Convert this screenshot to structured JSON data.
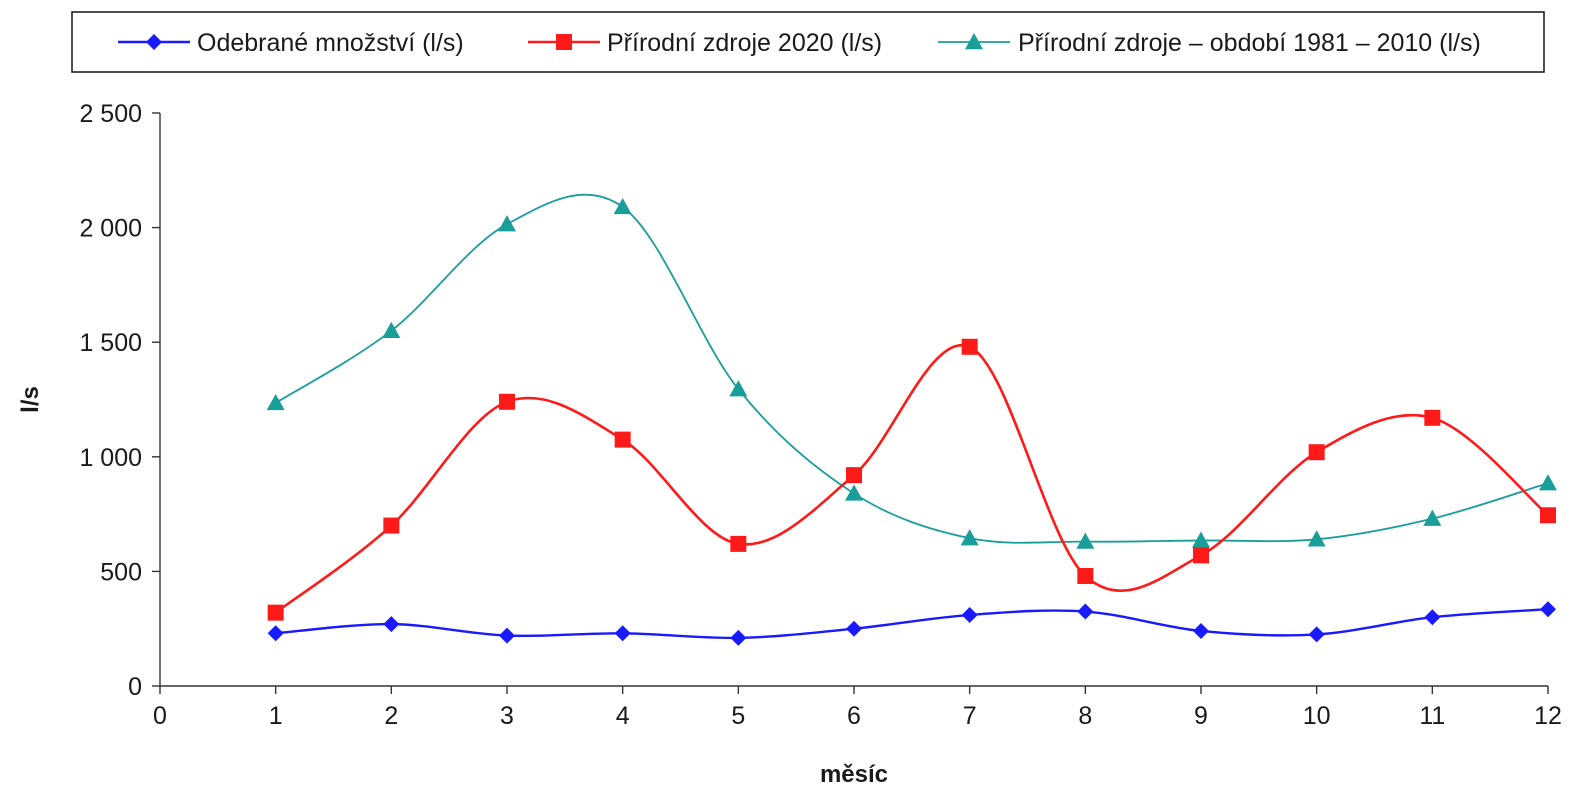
{
  "chart_data": {
    "type": "line",
    "xlabel": "měsíc",
    "ylabel": "l/s",
    "xlim": [
      0,
      12
    ],
    "ylim": [
      0,
      2500
    ],
    "x_ticks": [
      "0",
      "1",
      "2",
      "3",
      "4",
      "5",
      "6",
      "7",
      "8",
      "9",
      "10",
      "11",
      "12"
    ],
    "y_ticks": [
      "0",
      "500",
      "1 000",
      "1 500",
      "2 000",
      "2 500"
    ],
    "x": [
      1,
      2,
      3,
      4,
      5,
      6,
      7,
      8,
      9,
      10,
      11,
      12
    ],
    "grid": false,
    "legend_position": "top",
    "series": [
      {
        "name": "Odebrané množství (l/s)",
        "color": "#1a1aff",
        "marker": "diamond",
        "values": [
          230,
          270,
          220,
          230,
          210,
          250,
          310,
          325,
          240,
          225,
          300,
          335
        ]
      },
      {
        "name": "Přírodní zdroje 2020 (l/s)",
        "color": "#ff1a1a",
        "marker": "square",
        "values": [
          320,
          700,
          1240,
          1075,
          620,
          920,
          1480,
          480,
          570,
          1020,
          1170,
          745
        ]
      },
      {
        "name": "Přírodní  zdroje – období  1981 – 2010 (l/s)",
        "color": "#1a9e9a",
        "marker": "triangle",
        "values": [
          1235,
          1550,
          2015,
          2090,
          1295,
          840,
          645,
          630,
          635,
          640,
          730,
          885
        ]
      }
    ]
  }
}
